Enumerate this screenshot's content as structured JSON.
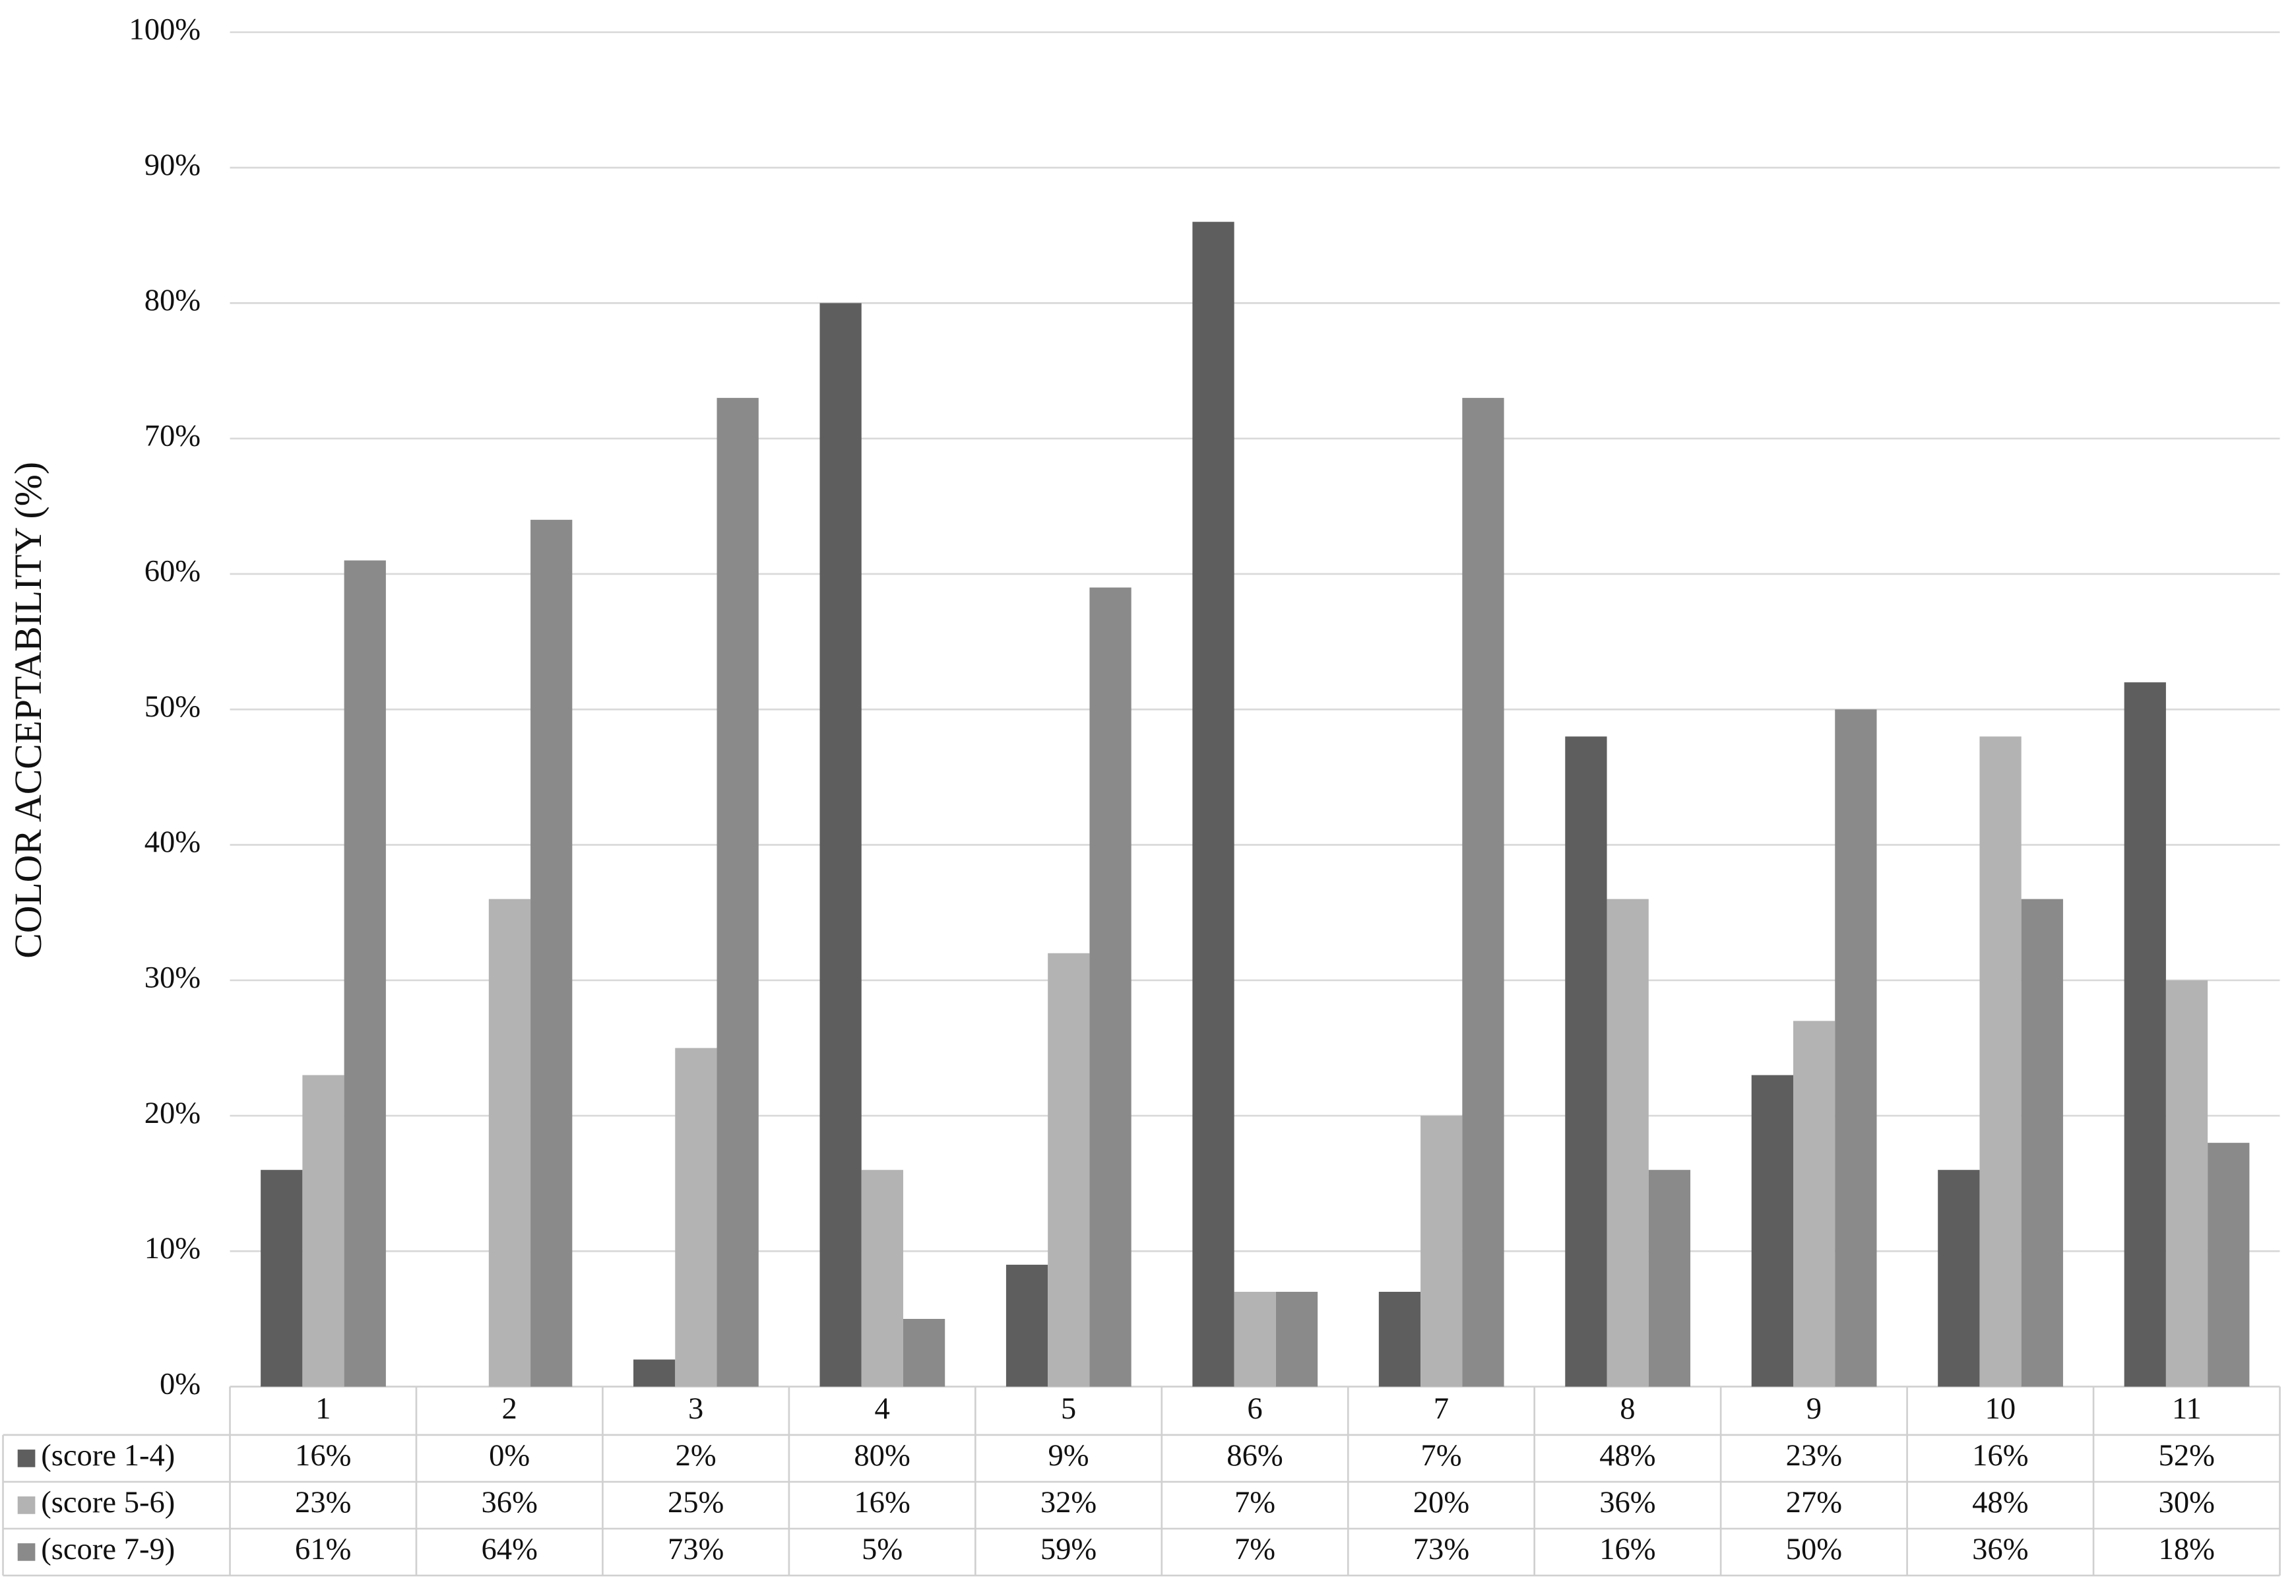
{
  "chart_data": {
    "type": "bar",
    "y_label": "COLOR ACCEPTABILITY (%)",
    "categories": [
      "1",
      "2",
      "3",
      "4",
      "5",
      "6",
      "7",
      "8",
      "9",
      "10",
      "11"
    ],
    "series": [
      {
        "name": "(score 1-4)",
        "color": "#5e5e5e",
        "values": [
          16,
          0,
          2,
          80,
          9,
          86,
          7,
          48,
          23,
          16,
          52
        ],
        "value_labels": [
          "16%",
          "0%",
          "2%",
          "80%",
          "9%",
          "86%",
          "7%",
          "48%",
          "23%",
          "16%",
          "52%"
        ]
      },
      {
        "name": "(score 5-6)",
        "color": "#b3b3b3",
        "values": [
          23,
          36,
          25,
          16,
          32,
          7,
          20,
          36,
          27,
          48,
          30
        ],
        "value_labels": [
          "23%",
          "36%",
          "25%",
          "16%",
          "32%",
          "7%",
          "20%",
          "36%",
          "27%",
          "48%",
          "30%"
        ]
      },
      {
        "name": "(score 7-9)",
        "color": "#8a8a8a",
        "values": [
          61,
          64,
          73,
          5,
          59,
          7,
          73,
          16,
          50,
          36,
          18
        ],
        "value_labels": [
          "61%",
          "64%",
          "73%",
          "5%",
          "59%",
          "7%",
          "73%",
          "16%",
          "50%",
          "36%",
          "18%"
        ]
      }
    ],
    "ylim": [
      0,
      100
    ],
    "yticks": [
      {
        "value": 0,
        "label": "0%"
      },
      {
        "value": 10,
        "label": "10%"
      },
      {
        "value": 20,
        "label": "20%"
      },
      {
        "value": 30,
        "label": "30%"
      },
      {
        "value": 40,
        "label": "40%"
      },
      {
        "value": 50,
        "label": "50%"
      },
      {
        "value": 60,
        "label": "60%"
      },
      {
        "value": 70,
        "label": "70%"
      },
      {
        "value": 80,
        "label": "80%"
      },
      {
        "value": 90,
        "label": "90%"
      },
      {
        "value": 100,
        "label": "100%"
      }
    ],
    "grid": true,
    "legend": "table"
  }
}
